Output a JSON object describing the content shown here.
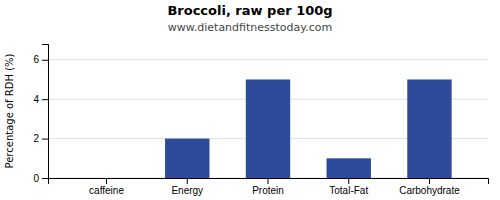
{
  "chart_data": {
    "type": "bar",
    "title": "Broccoli, raw per 100g",
    "subtitle": "www.dietandfitnesstoday.com",
    "categories": [
      "caffeine",
      "Energy",
      "Protein",
      "Total-Fat",
      "Carbohydrate"
    ],
    "values": [
      0,
      2.0,
      5.0,
      1.0,
      5.0
    ],
    "color": "#2e4b9a",
    "ylabel": "Percentage of RDH (%)",
    "ylim": [
      0,
      6.8
    ],
    "yticks": [
      0,
      2,
      4,
      6
    ],
    "grid": true
  }
}
